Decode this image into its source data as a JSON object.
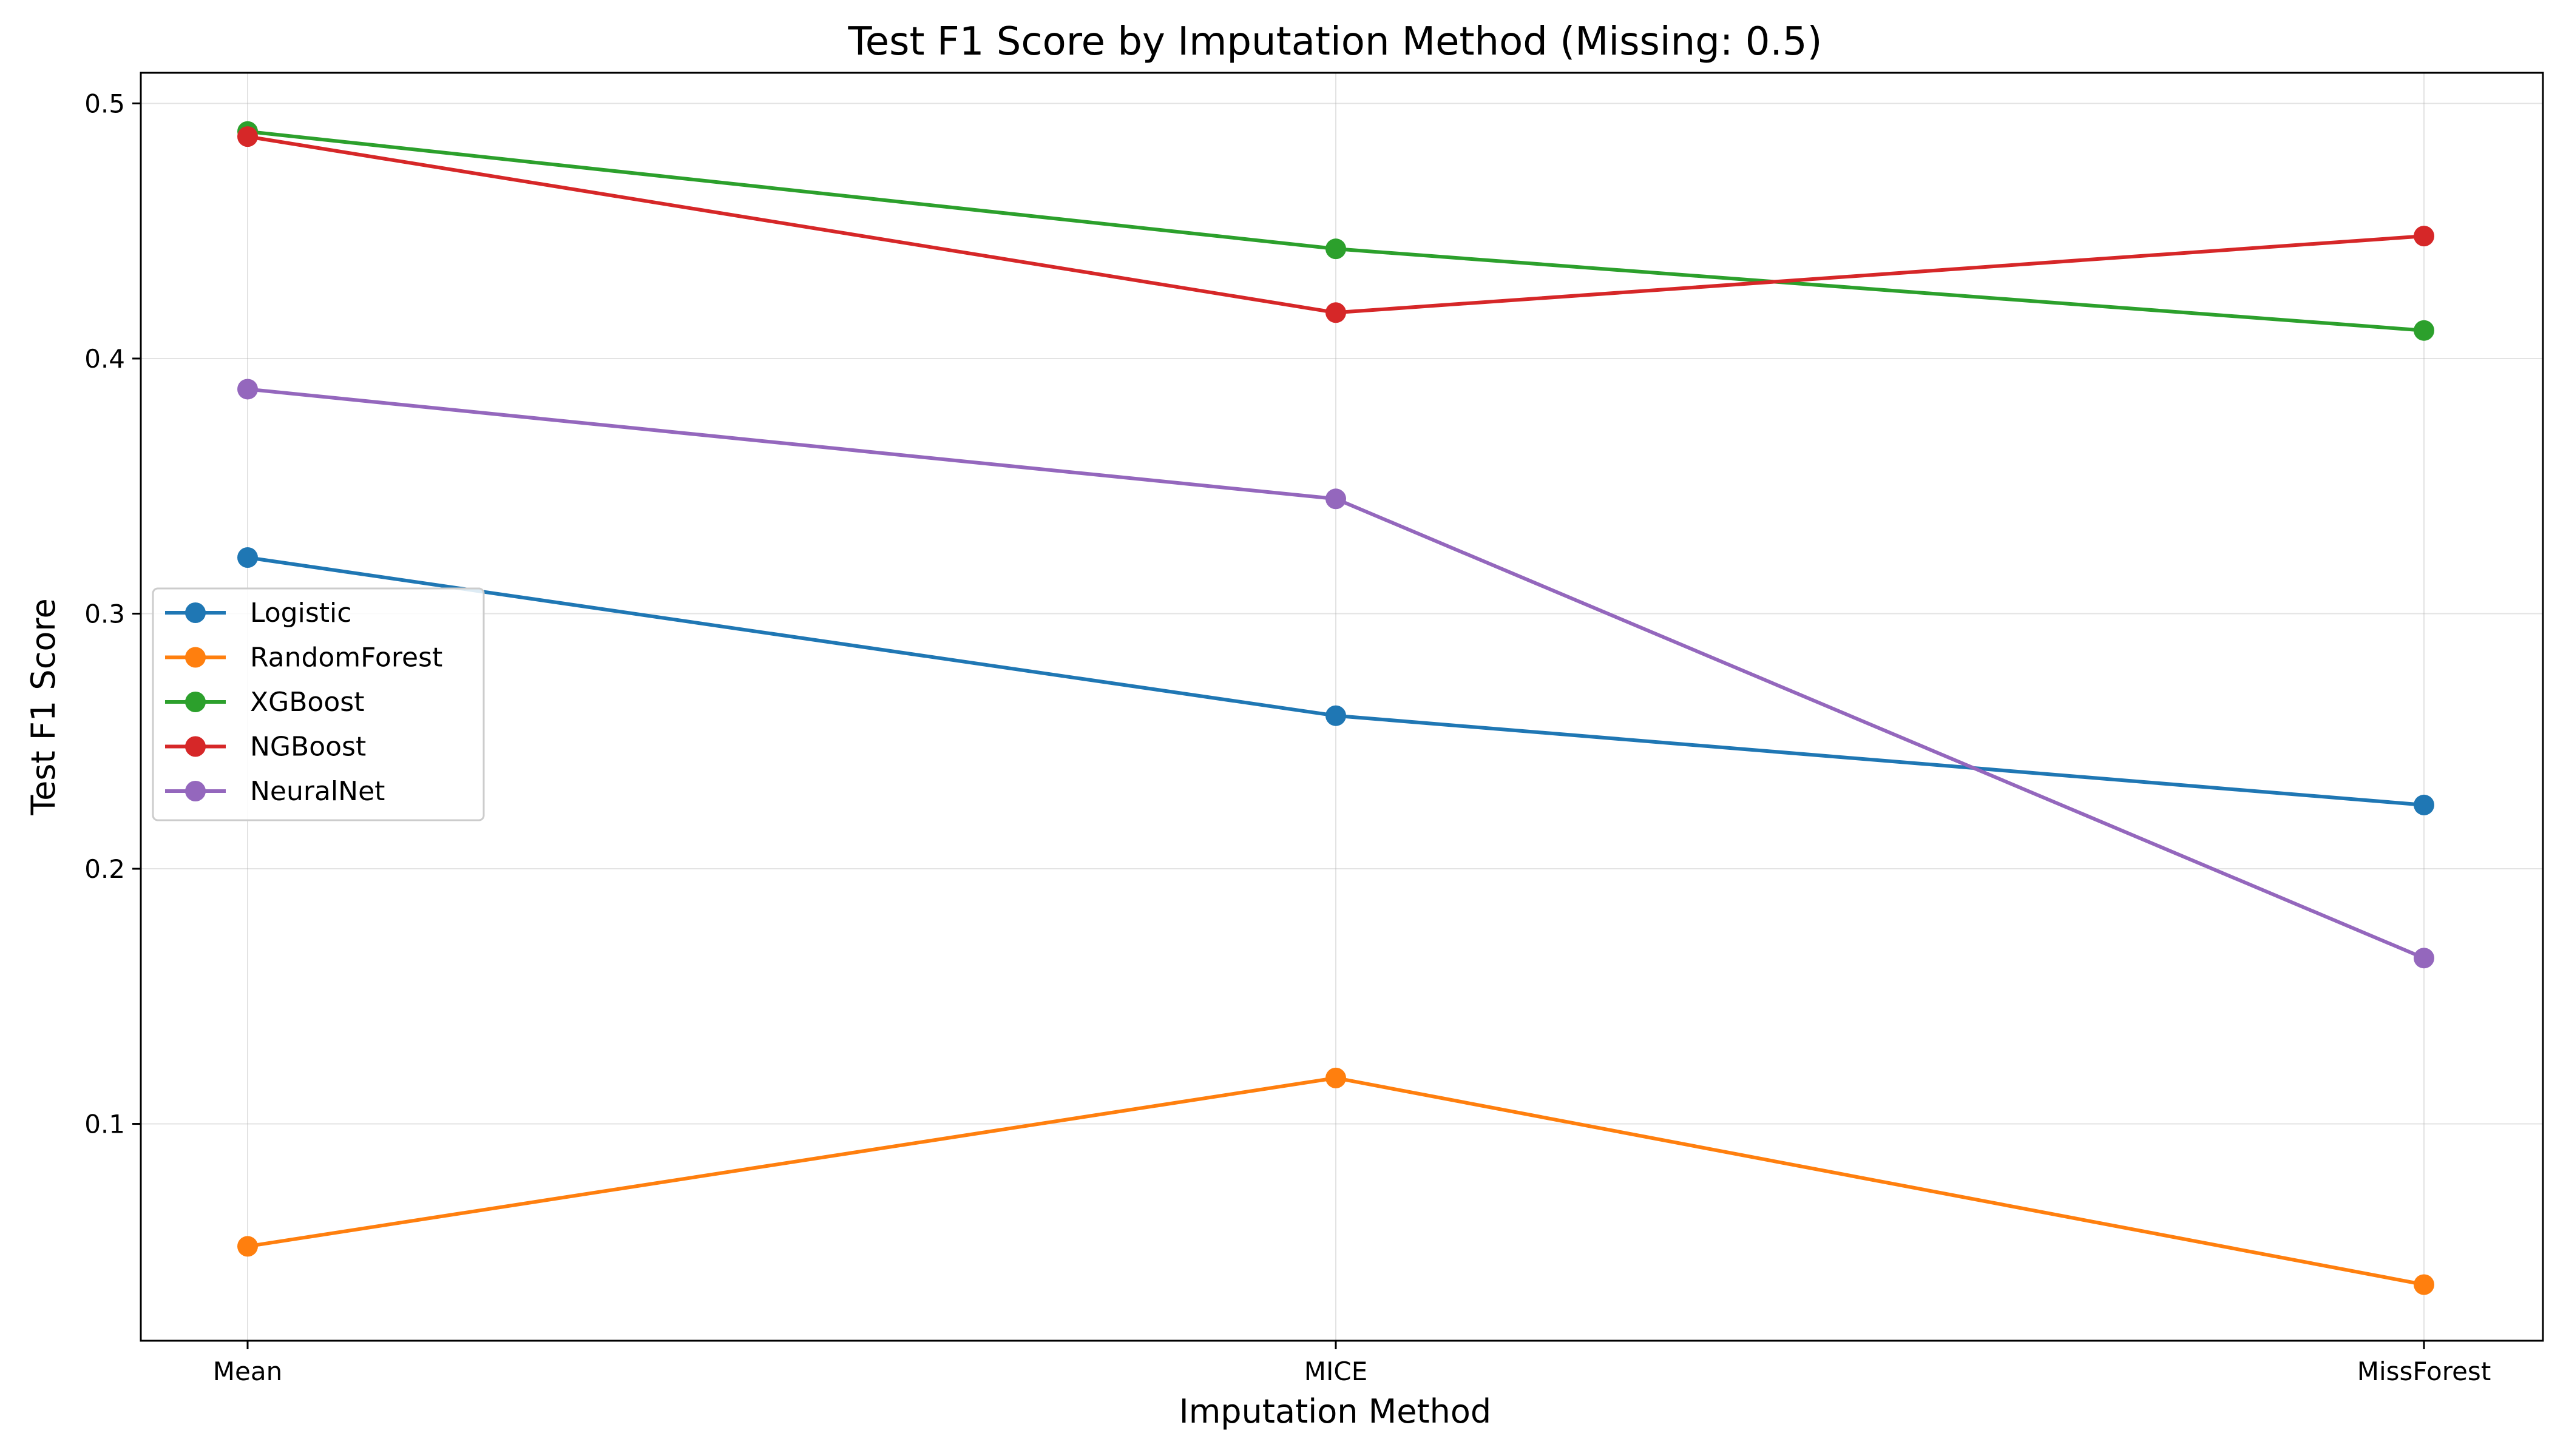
{
  "chart_data": {
    "type": "line",
    "title": "Test F1 Score by Imputation Method (Missing: 0.5)",
    "xlabel": "Imputation Method",
    "ylabel": "Test F1 Score",
    "categories": [
      "Mean",
      "MICE",
      "MissForest"
    ],
    "ylim": [
      0.015,
      0.512
    ],
    "yticks": [
      0.1,
      0.2,
      0.3,
      0.4,
      0.5
    ],
    "grid": true,
    "legend_position": "center-left",
    "series": [
      {
        "name": "Logistic",
        "color": "#1f77b4",
        "values": [
          0.322,
          0.26,
          0.225
        ]
      },
      {
        "name": "RandomForest",
        "color": "#ff7f0e",
        "values": [
          0.052,
          0.118,
          0.037
        ]
      },
      {
        "name": "XGBoost",
        "color": "#2ca02c",
        "values": [
          0.489,
          0.443,
          0.411
        ]
      },
      {
        "name": "NGBoost",
        "color": "#d62728",
        "values": [
          0.487,
          0.418,
          0.448
        ]
      },
      {
        "name": "NeuralNet",
        "color": "#9467bd",
        "values": [
          0.388,
          0.345,
          0.165
        ]
      }
    ]
  }
}
